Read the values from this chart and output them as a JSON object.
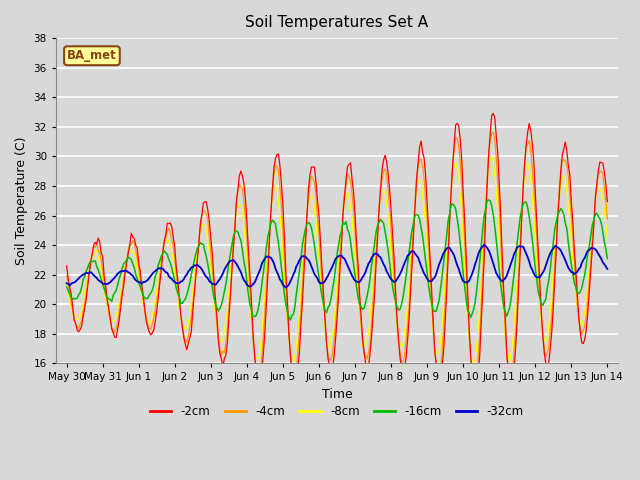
{
  "title": "Soil Temperatures Set A",
  "xlabel": "Time",
  "ylabel": "Soil Temperature (C)",
  "ylim": [
    16,
    38
  ],
  "yticks": [
    16,
    18,
    20,
    22,
    24,
    26,
    28,
    30,
    32,
    34,
    36,
    38
  ],
  "colors": {
    "-2cm": "#ff0000",
    "-4cm": "#ff9900",
    "-8cm": "#ffff00",
    "-16cm": "#00bb00",
    "-32cm": "#0000cc"
  },
  "legend_labels": [
    "-2cm",
    "-4cm",
    "-8cm",
    "-16cm",
    "-32cm"
  ],
  "annotation_text": "BA_met",
  "annotation_bg": "#ffff99",
  "annotation_border": "#8b4513",
  "background_color": "#d8d8d8",
  "grid_color": "#ffffff",
  "x_tick_labels": [
    "May 30",
    "May 31",
    "Jun 1",
    "Jun 2",
    "Jun 3",
    "Jun 4",
    "Jun 5",
    "Jun 6",
    "Jun 7",
    "Jun 8",
    "Jun 9",
    "Jun 10",
    "Jun 11",
    "Jun 12",
    "Jun 13",
    "Jun 14"
  ]
}
